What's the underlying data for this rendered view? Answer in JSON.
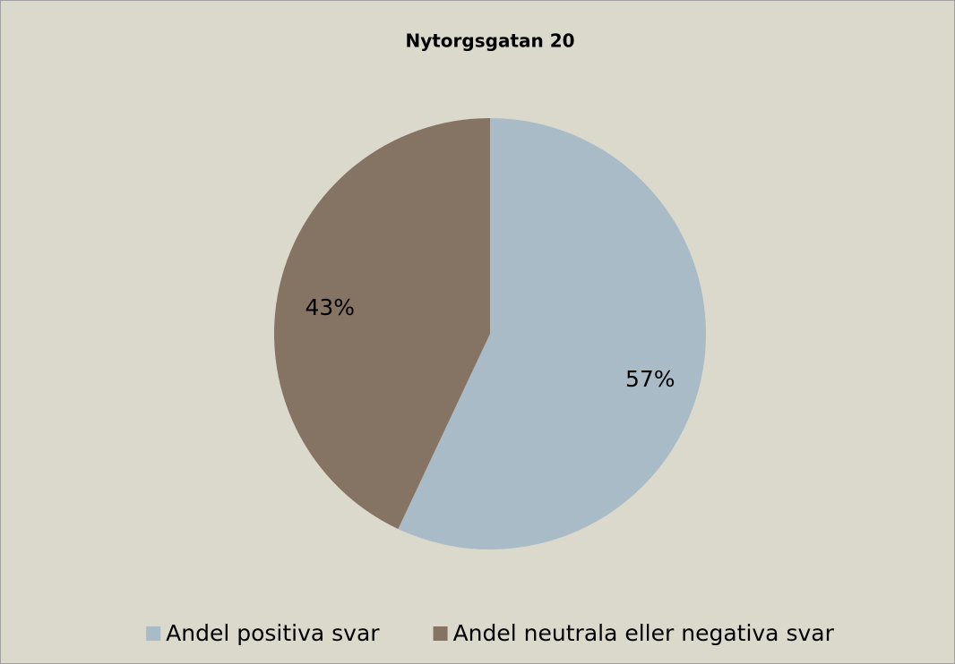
{
  "chart_data": {
    "type": "pie",
    "title": "Nytorgsgatan 20",
    "categories": [
      "Andel positiva svar",
      "Andel neutrala eller negativa svar"
    ],
    "values": [
      57,
      43
    ],
    "value_labels": [
      "57%",
      "43%"
    ],
    "colors": [
      "#a8bbc6",
      "#857363"
    ],
    "legend": "bottom"
  }
}
